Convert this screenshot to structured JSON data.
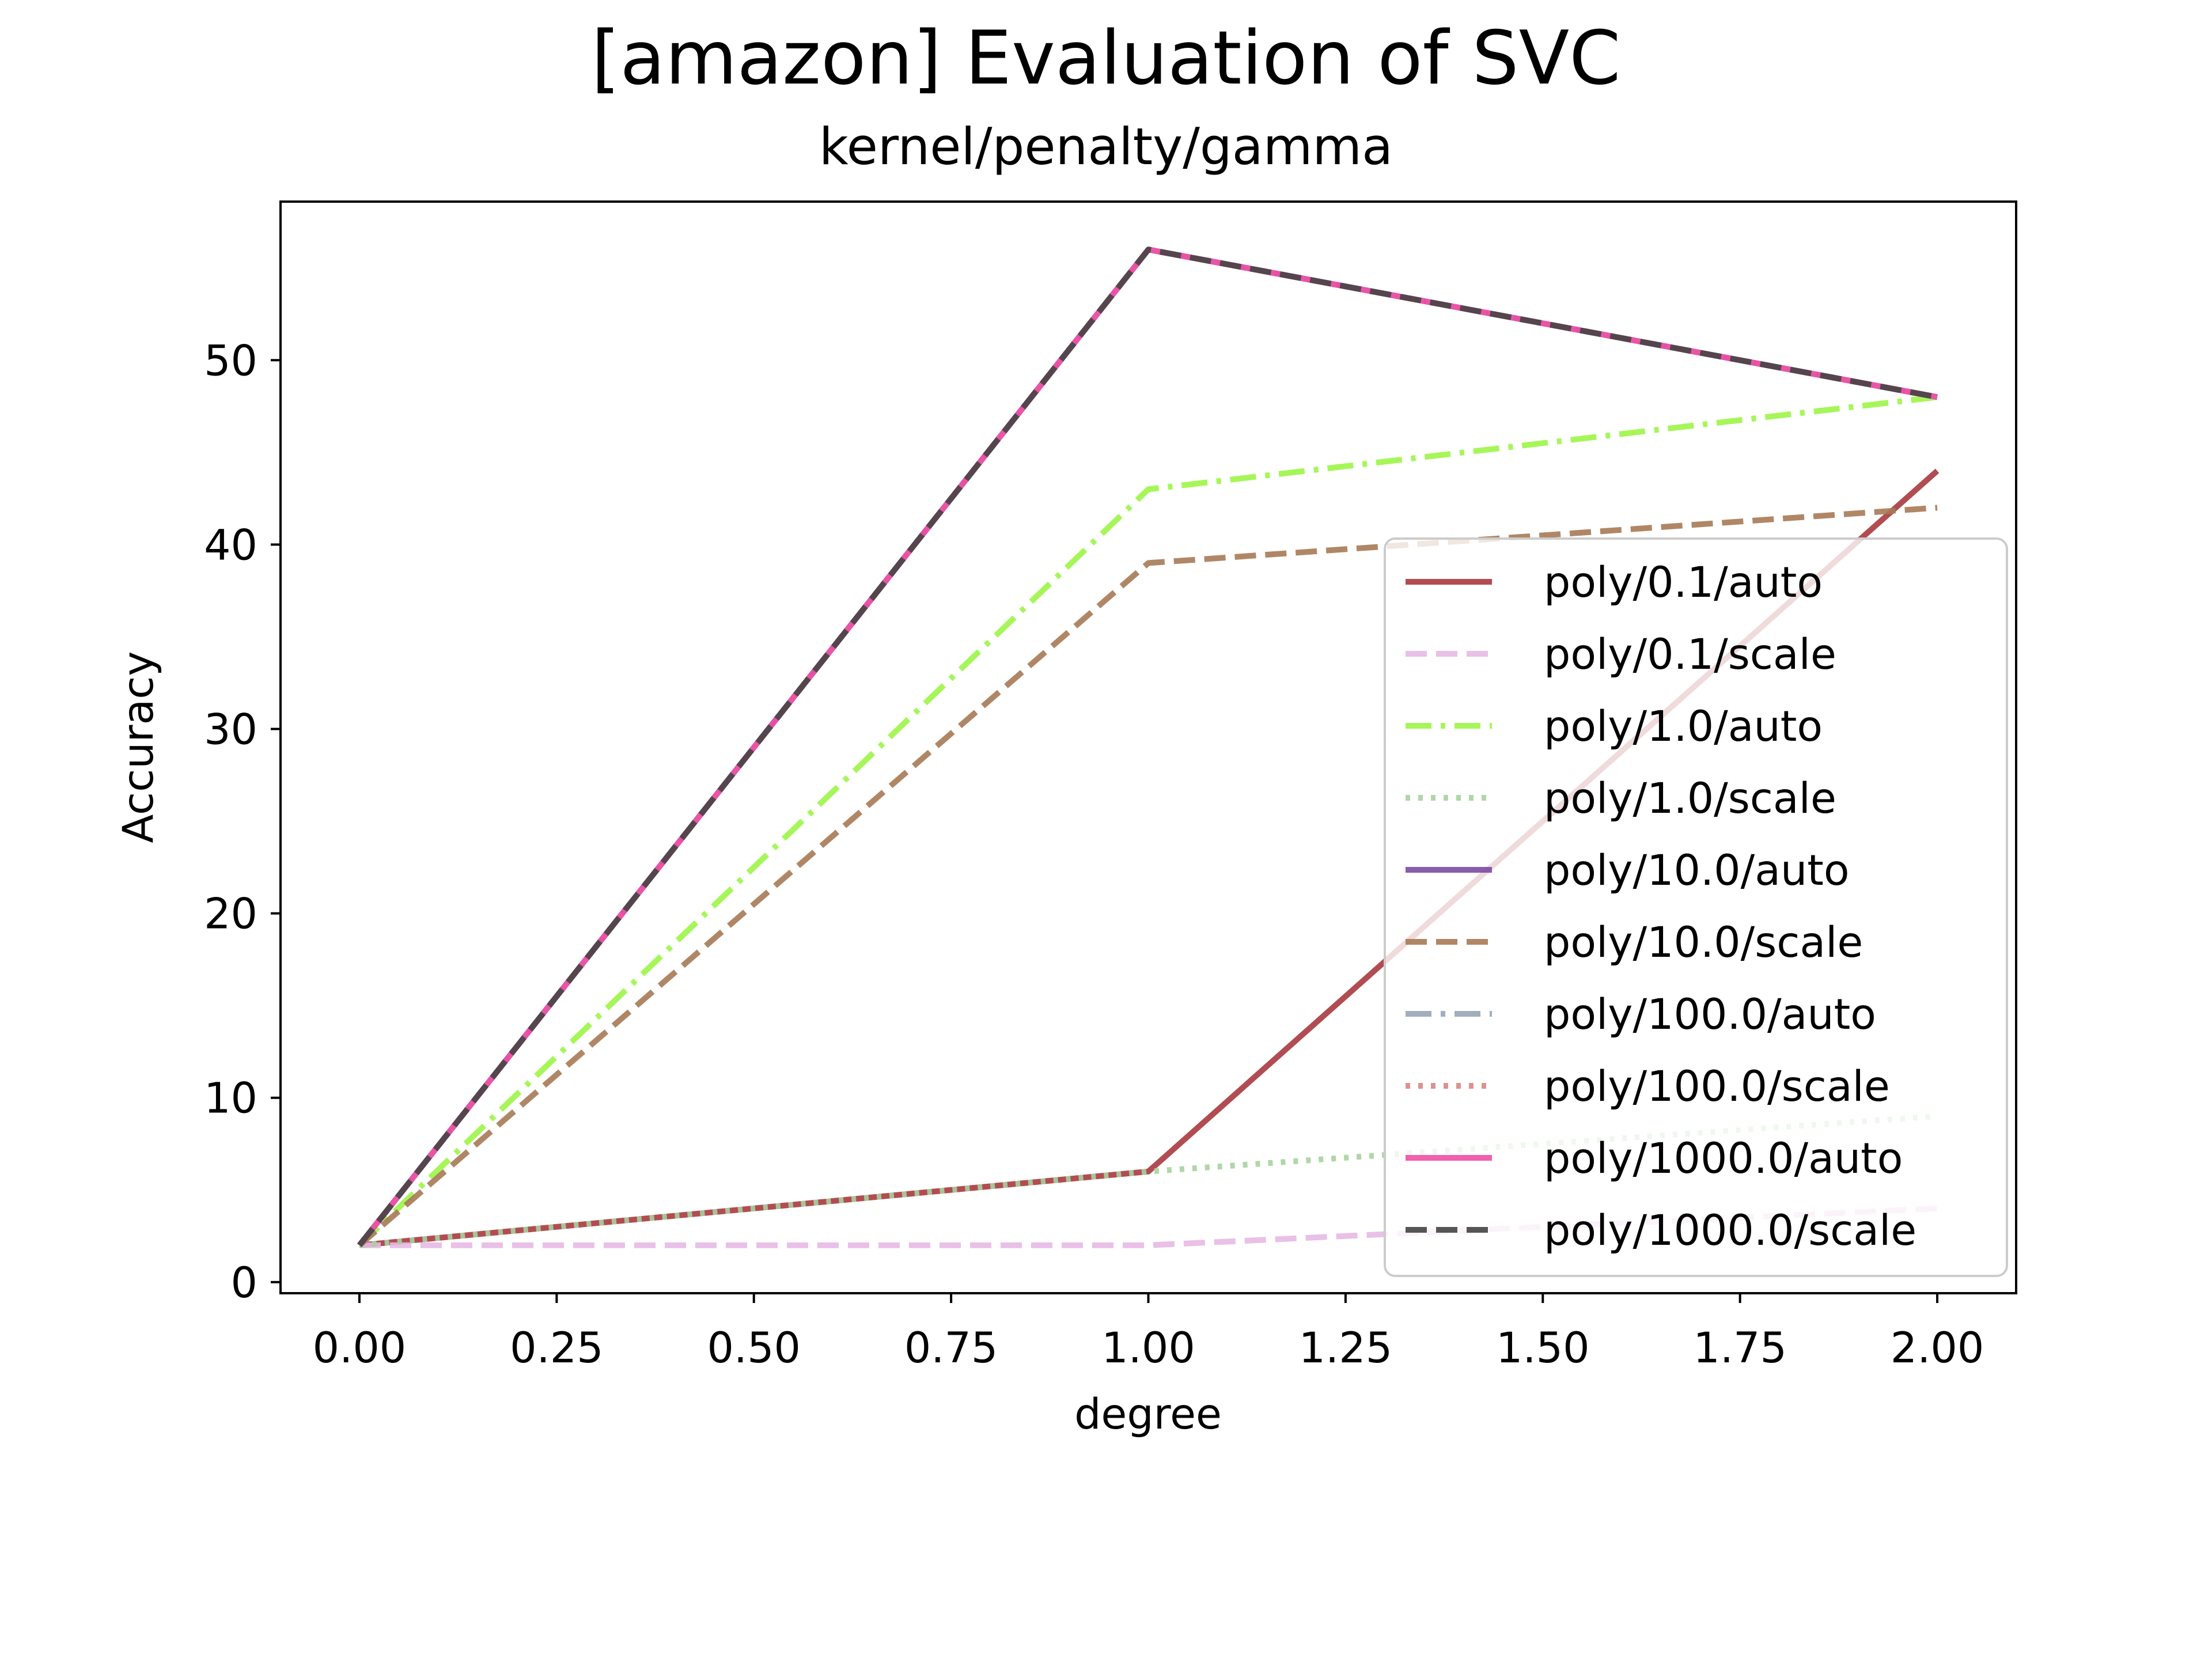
{
  "chart_data": {
    "type": "line",
    "title": "[amazon] Evaluation of SVC",
    "subtitle": "kernel/penalty/gamma",
    "xlabel": "degree",
    "ylabel": "Accuracy",
    "x": [
      0,
      1,
      2
    ],
    "xlim": [
      -0.1,
      2.1
    ],
    "ylim": [
      -0.6,
      58.6
    ],
    "xticks": [
      0,
      0.25,
      0.5,
      0.75,
      1.0,
      1.25,
      1.5,
      1.75,
      2.0
    ],
    "xtick_labels": [
      "0.00",
      "0.25",
      "0.50",
      "0.75",
      "1.00",
      "1.25",
      "1.50",
      "1.75",
      "2.00"
    ],
    "yticks": [
      0,
      10,
      20,
      30,
      40,
      50
    ],
    "ytick_labels": [
      "0",
      "10",
      "20",
      "30",
      "40",
      "50"
    ],
    "grid": false,
    "legend_position": "lower-right",
    "series": [
      {
        "name": "poly/0.1/auto",
        "values": [
          2,
          6,
          44
        ],
        "color": "#a83a3f",
        "dash": "solid"
      },
      {
        "name": "poly/0.1/scale",
        "values": [
          2,
          2,
          4
        ],
        "color": "#e7b9e4",
        "dash": "dashed"
      },
      {
        "name": "poly/1.0/auto",
        "values": [
          2,
          43,
          48
        ],
        "color": "#9cf547",
        "dash": "dashdot"
      },
      {
        "name": "poly/1.0/scale",
        "values": [
          2,
          6,
          9
        ],
        "color": "#a8d2a0",
        "dash": "dotted"
      },
      {
        "name": "poly/10.0/auto",
        "values": [
          2,
          56,
          48
        ],
        "color": "#7b4ba3",
        "dash": "solid"
      },
      {
        "name": "poly/10.0/scale",
        "values": [
          2,
          39,
          42
        ],
        "color": "#a77a55",
        "dash": "dashed"
      },
      {
        "name": "poly/100.0/auto",
        "values": [
          2,
          56,
          48
        ],
        "color": "#98a5b7",
        "dash": "dashdot"
      },
      {
        "name": "poly/100.0/scale",
        "values": [
          2,
          56,
          48
        ],
        "color": "#d98686",
        "dash": "dotted"
      },
      {
        "name": "poly/1000.0/auto",
        "values": [
          2,
          56,
          48
        ],
        "color": "#f04ea6",
        "dash": "solid"
      },
      {
        "name": "poly/1000.0/scale",
        "values": [
          2,
          56,
          48
        ],
        "color": "#444444",
        "dash": "dashed"
      }
    ]
  }
}
